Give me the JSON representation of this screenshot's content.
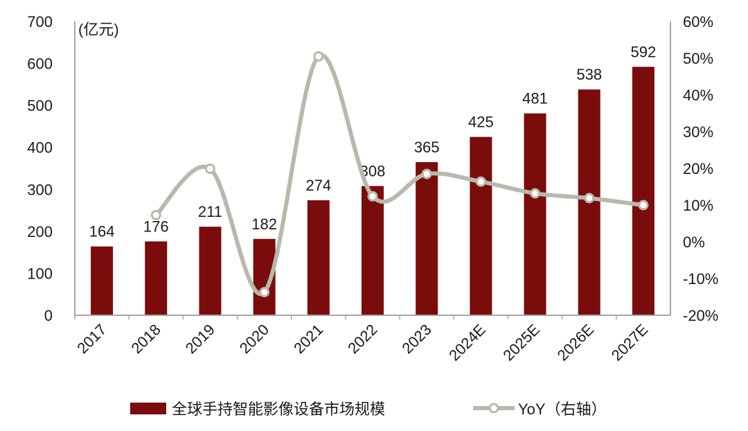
{
  "chart_data": {
    "type": "bar+line",
    "categories": [
      "2017",
      "2018",
      "2019",
      "2020",
      "2021",
      "2022",
      "2023",
      "2024E",
      "2025E",
      "2026E",
      "2027E"
    ],
    "series": [
      {
        "name": "全球手持智能影像设备市场规模",
        "type": "bar",
        "axis": "left",
        "color": "#7B0C0C",
        "values": [
          164,
          176,
          211,
          182,
          274,
          308,
          365,
          425,
          481,
          538,
          592
        ]
      },
      {
        "name": "YoY（右轴）",
        "type": "line",
        "axis": "right",
        "color": "#B8B8AC",
        "values": [
          null,
          7.3,
          19.9,
          -13.7,
          50.5,
          12.4,
          18.5,
          16.4,
          13.2,
          11.9,
          10.0
        ]
      }
    ],
    "left_axis": {
      "unit_label": "(亿元)",
      "ylim": [
        0,
        700
      ],
      "ticks": [
        "0",
        "100",
        "200",
        "300",
        "400",
        "500",
        "600",
        "700"
      ]
    },
    "right_axis": {
      "ylim": [
        -20,
        60
      ],
      "ticks": [
        "-20%",
        "-10%",
        "0%",
        "10%",
        "20%",
        "30%",
        "40%",
        "50%",
        "60%"
      ]
    },
    "data_labels": [
      "164",
      "176",
      "211",
      "182",
      "274",
      "308",
      "365",
      "425",
      "481",
      "538",
      "592"
    ],
    "grid": false,
    "legend": "bottom"
  }
}
